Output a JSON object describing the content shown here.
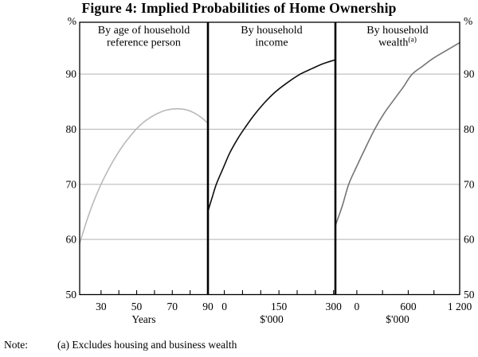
{
  "figure": {
    "title": "Figure 4: Implied Probabilities of Home Ownership",
    "note_label": "Note:",
    "note_text": "(a) Excludes housing and business wealth"
  },
  "chart_data": {
    "type": "line",
    "title": "Figure 4: Implied Probabilities of Home Ownership",
    "y_axis": {
      "unit": "%",
      "lim": [
        50,
        99.4
      ],
      "ticks": [
        "90",
        "80",
        "70",
        "60",
        "50"
      ],
      "tick_values": [
        90,
        80,
        70,
        60,
        50
      ],
      "gridlines": [
        60,
        70,
        80,
        90
      ],
      "label_sides": [
        "left",
        "right"
      ]
    },
    "panels": [
      {
        "title_lines": [
          "By age of household",
          "reference person"
        ],
        "title_sup": "",
        "xlabel": "Years",
        "xlim": [
          18,
          90
        ],
        "xticks": [
          {
            "v": 30,
            "label": "30"
          },
          {
            "v": 40,
            "label": ""
          },
          {
            "v": 50,
            "label": "50"
          },
          {
            "v": 60,
            "label": ""
          },
          {
            "v": 70,
            "label": "70"
          },
          {
            "v": 80,
            "label": ""
          },
          {
            "v": 90,
            "label": "90"
          }
        ],
        "line_color": "#b9b9b9",
        "series_name": "implied-probability-by-age",
        "points": [
          [
            18,
            59.3
          ],
          [
            22,
            63.4
          ],
          [
            26,
            67.0
          ],
          [
            30,
            70.0
          ],
          [
            34,
            72.6
          ],
          [
            38,
            74.9
          ],
          [
            42,
            76.9
          ],
          [
            46,
            78.6
          ],
          [
            50,
            80.1
          ],
          [
            54,
            81.3
          ],
          [
            58,
            82.2
          ],
          [
            62,
            82.9
          ],
          [
            66,
            83.4
          ],
          [
            70,
            83.65
          ],
          [
            74,
            83.7
          ],
          [
            78,
            83.5
          ],
          [
            82,
            83.0
          ],
          [
            86,
            82.2
          ],
          [
            90,
            81.1
          ]
        ]
      },
      {
        "title_lines": [
          "By household",
          "income"
        ],
        "title_sup": "",
        "xlabel": "$'000",
        "xlim": [
          -45,
          305
        ],
        "xticks": [
          {
            "v": 0,
            "label": "0"
          },
          {
            "v": 50,
            "label": ""
          },
          {
            "v": 100,
            "label": ""
          },
          {
            "v": 150,
            "label": "150"
          },
          {
            "v": 200,
            "label": ""
          },
          {
            "v": 250,
            "label": ""
          },
          {
            "v": 300,
            "label": "300"
          }
        ],
        "line_color": "#0d0d0d",
        "series_name": "implied-probability-by-income",
        "points": [
          [
            -45,
            65.1
          ],
          [
            -33,
            67.7
          ],
          [
            -22,
            70.0
          ],
          [
            -4,
            72.8
          ],
          [
            15,
            75.7
          ],
          [
            37,
            78.3
          ],
          [
            55,
            80.1
          ],
          [
            80,
            82.4
          ],
          [
            109,
            84.7
          ],
          [
            139,
            86.7
          ],
          [
            172,
            88.4
          ],
          [
            206,
            89.9
          ],
          [
            241,
            91.0
          ],
          [
            272,
            91.9
          ],
          [
            305,
            92.6
          ]
        ]
      },
      {
        "title_lines": [
          "By household",
          "wealth"
        ],
        "title_sup": "(a)",
        "xlabel": "$'000",
        "xlim": [
          -250,
          1200
        ],
        "xticks": [
          {
            "v": 0,
            "label": "0"
          },
          {
            "v": 300,
            "label": ""
          },
          {
            "v": 600,
            "label": "600"
          },
          {
            "v": 900,
            "label": ""
          },
          {
            "v": 1200,
            "label": "1 200"
          }
        ],
        "line_color": "#747474",
        "series_name": "implied-probability-by-wealth",
        "points": [
          [
            -250,
            62.5
          ],
          [
            -165,
            66.3
          ],
          [
            -95,
            70.0
          ],
          [
            0,
            73.3
          ],
          [
            100,
            76.6
          ],
          [
            205,
            79.9
          ],
          [
            315,
            82.8
          ],
          [
            430,
            85.3
          ],
          [
            540,
            87.6
          ],
          [
            640,
            89.9
          ],
          [
            765,
            91.4
          ],
          [
            895,
            92.9
          ],
          [
            1025,
            94.1
          ],
          [
            1200,
            95.7
          ]
        ]
      }
    ],
    "layout_hints": {
      "grid": true,
      "legend": "none",
      "panel_count": 3
    }
  }
}
